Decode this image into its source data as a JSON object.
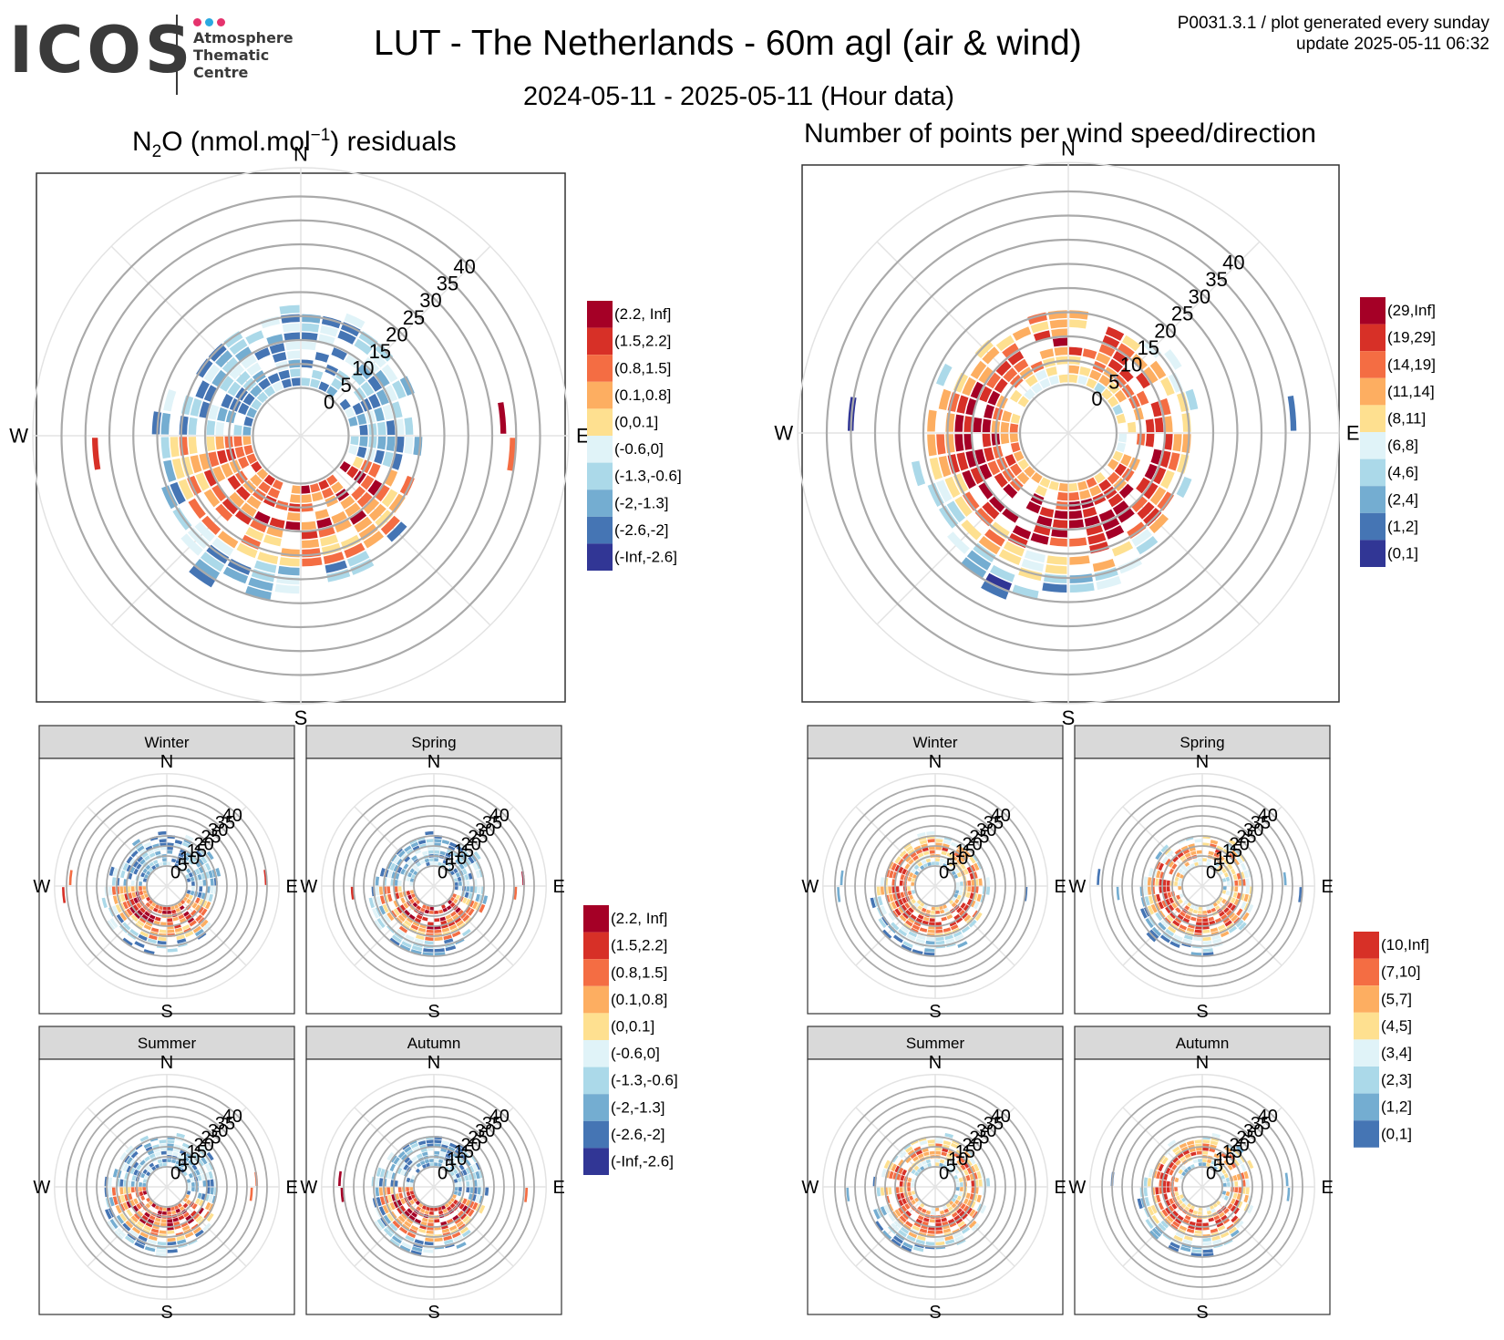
{
  "logo": {
    "wordmark": "ICOS",
    "lines": [
      "Atmosphere",
      "Thematic",
      "Centre"
    ],
    "dot_colors": [
      "#e5336d",
      "#2aa9e0",
      "#e5336d"
    ]
  },
  "header": {
    "title": "LUT - The Netherlands - 60m agl (air & wind)",
    "subtitle": "2024-05-11 - 2025-05-11 (Hour data)",
    "meta_line1": "P0031.3.1 / plot generated every sunday",
    "meta_line2": "update  2025-05-11 06:32"
  },
  "chart_data": [
    {
      "id": "residuals-main",
      "type": "polar-heatmap",
      "title_prefix": "N",
      "title_sub": "2",
      "title_mid": "O (nmol.mol",
      "title_sup": "−1",
      "title_suffix": ") residuals",
      "radial_ticks": [
        0,
        5,
        10,
        15,
        20,
        25,
        30,
        35,
        40
      ],
      "rmax": 45,
      "directions": [
        "N",
        "E",
        "S",
        "W"
      ],
      "legend": {
        "labels": [
          "(2.2, Inf]",
          "(1.5,2.2]",
          "(0.8,1.5]",
          "(0.1,0.8]",
          "(0,0.1]",
          "(-0.6,0]",
          "(-1.3,-0.6]",
          "(-2,-1.3]",
          "(-2.6,-2]",
          "(-Inf,-2.6]"
        ],
        "colors": [
          "#a50026",
          "#d73027",
          "#f46d43",
          "#fdae61",
          "#fee090",
          "#e0f3f8",
          "#abd9e9",
          "#74add1",
          "#4575b4",
          "#313695"
        ]
      }
    },
    {
      "id": "counts-main",
      "type": "polar-heatmap",
      "title": "Number of points per wind speed/direction",
      "radial_ticks": [
        0,
        5,
        10,
        15,
        20,
        25,
        30,
        35,
        40
      ],
      "rmax": 45,
      "directions": [
        "N",
        "E",
        "S",
        "W"
      ],
      "legend": {
        "labels": [
          "(29,Inf]",
          "(19,29]",
          "(14,19]",
          "(11,14]",
          "(8,11]",
          "(6,8]",
          "(4,6]",
          "(2,4]",
          "(1,2]",
          "(0,1]"
        ],
        "colors": [
          "#a50026",
          "#d73027",
          "#f46d43",
          "#fdae61",
          "#fee090",
          "#e0f3f8",
          "#abd9e9",
          "#74add1",
          "#4575b4",
          "#313695"
        ]
      }
    },
    {
      "id": "residuals-seasonal",
      "type": "polar-heatmap",
      "facets": [
        "Winter",
        "Spring",
        "Summer",
        "Autumn"
      ],
      "radial_ticks": [
        0,
        5,
        10,
        15,
        20,
        25,
        30,
        35,
        40
      ],
      "directions": [
        "N",
        "E",
        "S",
        "W"
      ],
      "legend": {
        "labels": [
          "(2.2, Inf]",
          "(1.5,2.2]",
          "(0.8,1.5]",
          "(0.1,0.8]",
          "(0,0.1]",
          "(-0.6,0]",
          "(-1.3,-0.6]",
          "(-2,-1.3]",
          "(-2.6,-2]",
          "(-Inf,-2.6]"
        ],
        "colors": [
          "#a50026",
          "#d73027",
          "#f46d43",
          "#fdae61",
          "#fee090",
          "#e0f3f8",
          "#abd9e9",
          "#74add1",
          "#4575b4",
          "#313695"
        ]
      }
    },
    {
      "id": "counts-seasonal",
      "type": "polar-heatmap",
      "facets": [
        "Winter",
        "Spring",
        "Summer",
        "Autumn"
      ],
      "radial_ticks": [
        0,
        5,
        10,
        15,
        20,
        25,
        30,
        35,
        40
      ],
      "directions": [
        "N",
        "E",
        "S",
        "W"
      ],
      "legend": {
        "labels": [
          "(10,Inf]",
          "(7,10]",
          "(5,7]",
          "(4,5]",
          "(3,4]",
          "(2,3]",
          "(1,2]",
          "(0,1]"
        ],
        "colors": [
          "#d73027",
          "#f46d43",
          "#fdae61",
          "#fee090",
          "#e0f3f8",
          "#abd9e9",
          "#74add1",
          "#4575b4"
        ]
      }
    }
  ]
}
